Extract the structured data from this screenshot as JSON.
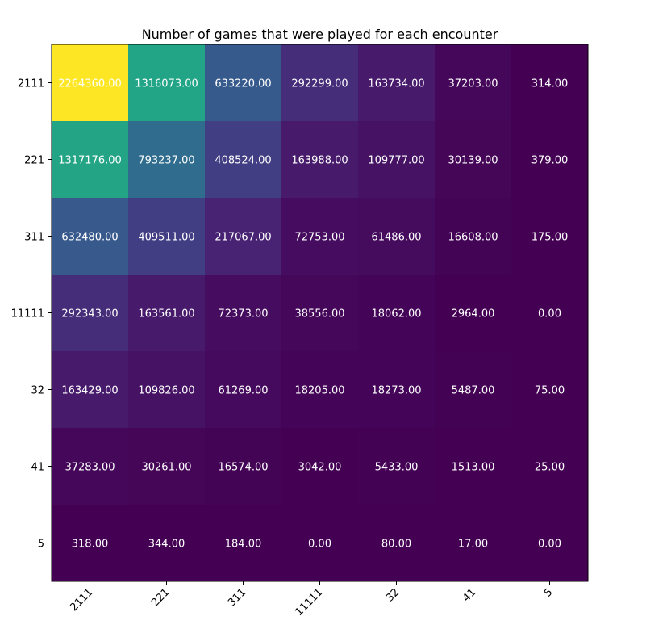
{
  "chart_data": {
    "type": "heatmap",
    "title": "Number of games that were played for each encounter",
    "xlabel": "",
    "ylabel": "",
    "x_categories": [
      "2111",
      "221",
      "311",
      "11111",
      "32",
      "41",
      "5"
    ],
    "y_categories": [
      "2111",
      "221",
      "311",
      "11111",
      "32",
      "41",
      "5"
    ],
    "values": [
      [
        2264360,
        1316073,
        633220,
        292299,
        163734,
        37203,
        314
      ],
      [
        1317176,
        793237,
        408524,
        163988,
        109777,
        30139,
        379
      ],
      [
        632480,
        409511,
        217067,
        72753,
        61486,
        16608,
        175
      ],
      [
        292343,
        163561,
        72373,
        38556,
        18062,
        2964,
        0
      ],
      [
        163429,
        109826,
        61269,
        18205,
        18273,
        5487,
        75
      ],
      [
        37283,
        30261,
        16574,
        3042,
        5433,
        1513,
        25
      ],
      [
        318,
        344,
        184,
        0,
        80,
        17,
        0
      ]
    ],
    "cell_labels": [
      [
        "2264360.00",
        "1316073.00",
        "633220.00",
        "292299.00",
        "163734.00",
        "37203.00",
        "314.00"
      ],
      [
        "1317176.00",
        "793237.00",
        "408524.00",
        "163988.00",
        "109777.00",
        "30139.00",
        "379.00"
      ],
      [
        "632480.00",
        "409511.00",
        "217067.00",
        "72753.00",
        "61486.00",
        "16608.00",
        "175.00"
      ],
      [
        "292343.00",
        "163561.00",
        "72373.00",
        "38556.00",
        "18062.00",
        "2964.00",
        "0.00"
      ],
      [
        "163429.00",
        "109826.00",
        "61269.00",
        "18205.00",
        "18273.00",
        "5487.00",
        "75.00"
      ],
      [
        "37283.00",
        "30261.00",
        "16574.00",
        "3042.00",
        "5433.00",
        "1513.00",
        "25.00"
      ],
      [
        "318.00",
        "344.00",
        "184.00",
        "0.00",
        "80.00",
        "17.00",
        "0.00"
      ]
    ],
    "colormap": "viridis",
    "color_range": [
      0,
      2264360
    ],
    "grid": false
  }
}
